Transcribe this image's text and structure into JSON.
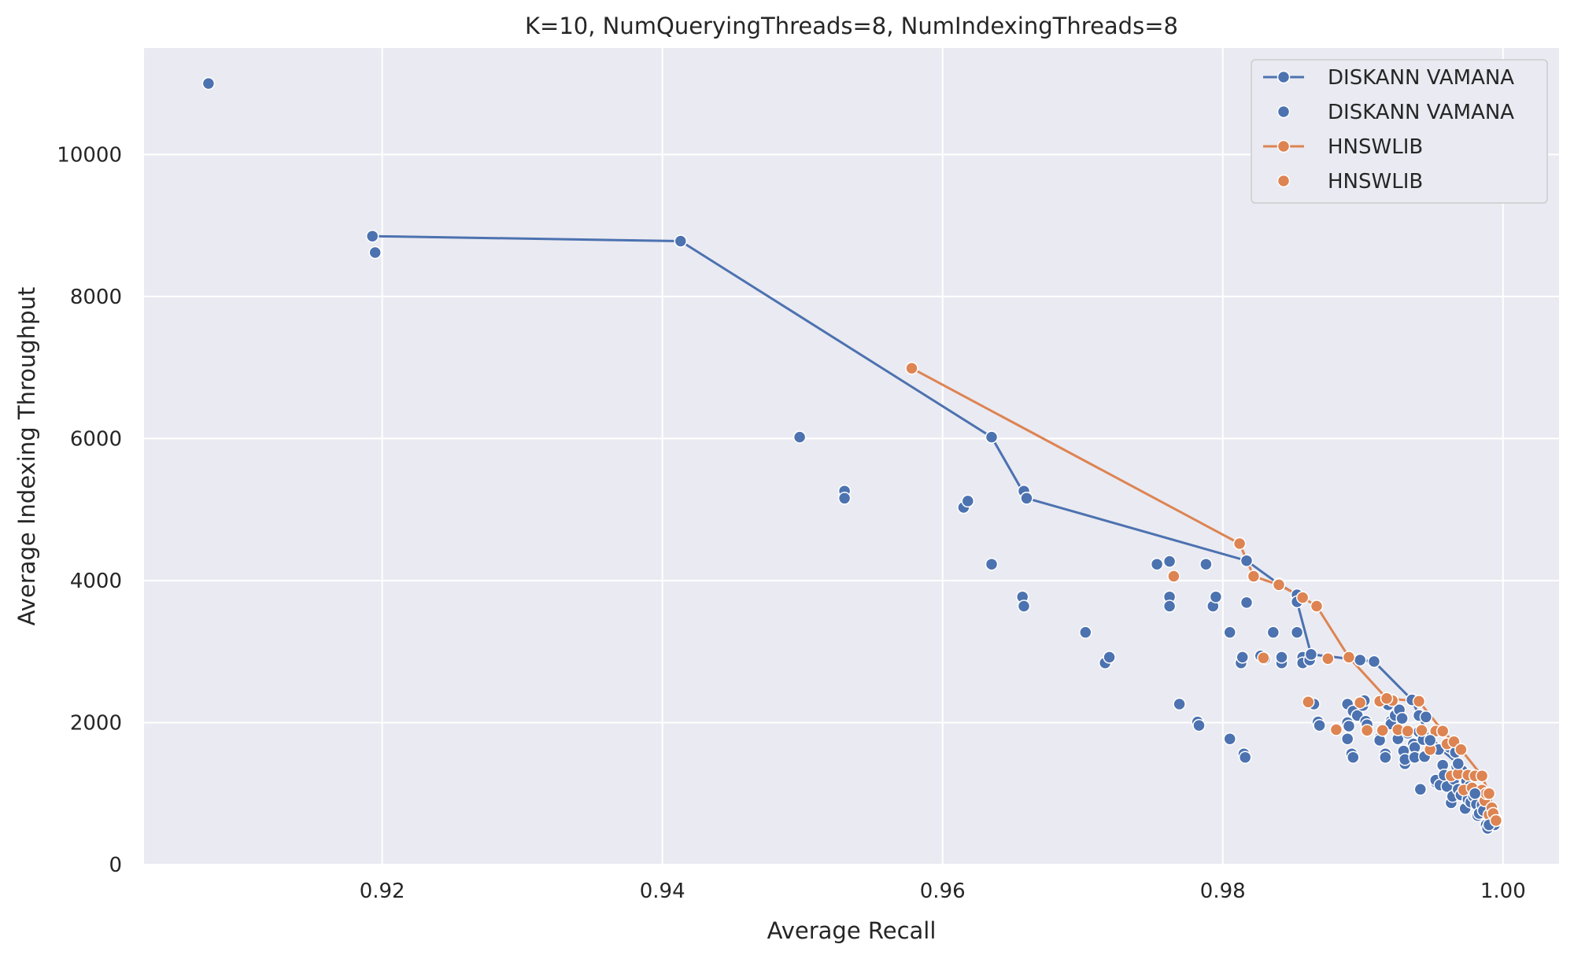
{
  "chart_data": {
    "type": "scatter",
    "title": "K=10, NumQueryingThreads=8, NumIndexingThreads=8",
    "xlabel": "Average Recall",
    "ylabel": "Average Indexing Throughput",
    "xlim": [
      0.903,
      1.004
    ],
    "ylim": [
      0,
      11500
    ],
    "xticks": [
      0.92,
      0.94,
      0.96,
      0.98,
      1.0
    ],
    "xtick_labels": [
      "0.92",
      "0.94",
      "0.96",
      "0.98",
      "1.00"
    ],
    "yticks": [
      0,
      2000,
      4000,
      6000,
      8000,
      10000
    ],
    "ytick_labels": [
      "0",
      "2000",
      "4000",
      "6000",
      "8000",
      "10000"
    ],
    "grid": true,
    "legend_position": "top-right",
    "background": "#eaeaf2",
    "legend": [
      {
        "label": "DISKANN VAMANA",
        "kind": "line-marker",
        "color": "#4c72b0"
      },
      {
        "label": "DISKANN VAMANA",
        "kind": "marker",
        "color": "#4c72b0"
      },
      {
        "label": "HNSWLIB",
        "kind": "line-marker",
        "color": "#dd8452"
      },
      {
        "label": "HNSWLIB",
        "kind": "marker",
        "color": "#dd8452"
      }
    ],
    "lines": [
      {
        "name": "DISKANN VAMANA",
        "color": "#4c72b0",
        "x": [
          0.9193,
          0.9413,
          0.9635,
          0.966,
          0.9817,
          0.984,
          0.9853,
          0.9853,
          0.9863,
          0.9898,
          0.9908,
          0.9935,
          0.9948,
          0.9968,
          0.998,
          0.999
        ],
        "y": [
          8850,
          8780,
          6020,
          5160,
          4280,
          3950,
          3800,
          3700,
          2960,
          2880,
          2860,
          2320,
          1750,
          1420,
          1000,
          560
        ]
      },
      {
        "name": "HNSWLIB",
        "color": "#dd8452",
        "x": [
          0.9578,
          0.9812,
          0.9822,
          0.984,
          0.9857,
          0.9867,
          0.989,
          0.9917,
          0.994,
          0.9957,
          0.997,
          0.9985,
          0.999,
          0.9995
        ],
        "y": [
          6990,
          4520,
          4060,
          3940,
          3760,
          3640,
          2920,
          2340,
          2300,
          1880,
          1620,
          1250,
          1000,
          620
        ]
      }
    ],
    "series": [
      {
        "name": "DISKANN VAMANA",
        "color": "#4c72b0",
        "points": [
          [
            0.9076,
            11000
          ],
          [
            0.9193,
            8850
          ],
          [
            0.9195,
            8620
          ],
          [
            0.9413,
            8780
          ],
          [
            0.9498,
            6020
          ],
          [
            0.953,
            5260
          ],
          [
            0.953,
            5160
          ],
          [
            0.9615,
            5030
          ],
          [
            0.9618,
            5120
          ],
          [
            0.9635,
            6020
          ],
          [
            0.9635,
            4230
          ],
          [
            0.9657,
            3770
          ],
          [
            0.9658,
            3640
          ],
          [
            0.9658,
            5260
          ],
          [
            0.966,
            5160
          ],
          [
            0.9702,
            3270
          ],
          [
            0.9716,
            2840
          ],
          [
            0.9719,
            2920
          ],
          [
            0.9753,
            4230
          ],
          [
            0.9762,
            4270
          ],
          [
            0.9762,
            3770
          ],
          [
            0.9762,
            3640
          ],
          [
            0.9769,
            2260
          ],
          [
            0.9782,
            2010
          ],
          [
            0.9783,
            1960
          ],
          [
            0.9788,
            4230
          ],
          [
            0.9793,
            3640
          ],
          [
            0.9795,
            3770
          ],
          [
            0.9805,
            3270
          ],
          [
            0.9805,
            1770
          ],
          [
            0.9813,
            2840
          ],
          [
            0.9814,
            2920
          ],
          [
            0.9815,
            1560
          ],
          [
            0.9816,
            1510
          ],
          [
            0.9817,
            3690
          ],
          [
            0.9817,
            4280
          ],
          [
            0.9827,
            2940
          ],
          [
            0.983,
            2900
          ],
          [
            0.9836,
            3270
          ],
          [
            0.9842,
            2840
          ],
          [
            0.9842,
            2920
          ],
          [
            0.984,
            3950
          ],
          [
            0.9853,
            3700
          ],
          [
            0.9853,
            3270
          ],
          [
            0.9857,
            2920
          ],
          [
            0.9857,
            2840
          ],
          [
            0.9862,
            2880
          ],
          [
            0.9863,
            2960
          ],
          [
            0.9865,
            2260
          ],
          [
            0.9868,
            2010
          ],
          [
            0.9869,
            1960
          ],
          [
            0.9889,
            2260
          ],
          [
            0.9889,
            2000
          ],
          [
            0.989,
            1950
          ],
          [
            0.9889,
            1770
          ],
          [
            0.9892,
            1560
          ],
          [
            0.9893,
            1510
          ],
          [
            0.9893,
            2160
          ],
          [
            0.9896,
            2100
          ],
          [
            0.9898,
            2880
          ],
          [
            0.99,
            2240
          ],
          [
            0.9901,
            2310
          ],
          [
            0.9902,
            2020
          ],
          [
            0.9903,
            1970
          ],
          [
            0.9908,
            2860
          ],
          [
            0.9912,
            1780
          ],
          [
            0.9912,
            1750
          ],
          [
            0.9916,
            1560
          ],
          [
            0.9916,
            1510
          ],
          [
            0.9918,
            2250
          ],
          [
            0.992,
            2020
          ],
          [
            0.992,
            1980
          ],
          [
            0.9923,
            2100
          ],
          [
            0.9925,
            1770
          ],
          [
            0.9926,
            2180
          ],
          [
            0.9928,
            2060
          ],
          [
            0.9929,
            1600
          ],
          [
            0.993,
            1420
          ],
          [
            0.993,
            1480
          ],
          [
            0.9932,
            1850
          ],
          [
            0.9935,
            2320
          ],
          [
            0.9936,
            1700
          ],
          [
            0.9937,
            1650
          ],
          [
            0.9937,
            1510
          ],
          [
            0.994,
            2100
          ],
          [
            0.994,
            1870
          ],
          [
            0.9941,
            1060
          ],
          [
            0.9943,
            1760
          ],
          [
            0.9944,
            1520
          ],
          [
            0.9945,
            2080
          ],
          [
            0.9948,
            1750
          ],
          [
            0.995,
            1680
          ],
          [
            0.9952,
            1160
          ],
          [
            0.9952,
            1190
          ],
          [
            0.9954,
            1620
          ],
          [
            0.9955,
            1120
          ],
          [
            0.9957,
            1400
          ],
          [
            0.9958,
            1260
          ],
          [
            0.996,
            1100
          ],
          [
            0.9962,
            1650
          ],
          [
            0.9963,
            870
          ],
          [
            0.9964,
            960
          ],
          [
            0.9965,
            1200
          ],
          [
            0.9966,
            1580
          ],
          [
            0.9967,
            1380
          ],
          [
            0.9968,
            1420
          ],
          [
            0.9968,
            1060
          ],
          [
            0.997,
            980
          ],
          [
            0.9971,
            1320
          ],
          [
            0.9972,
            1240
          ],
          [
            0.9973,
            790
          ],
          [
            0.9974,
            1180
          ],
          [
            0.9975,
            920
          ],
          [
            0.9976,
            1100
          ],
          [
            0.9977,
            880
          ],
          [
            0.9979,
            960
          ],
          [
            0.998,
            1000
          ],
          [
            0.9981,
            850
          ],
          [
            0.9982,
            690
          ],
          [
            0.9983,
            720
          ],
          [
            0.9985,
            840
          ],
          [
            0.9986,
            760
          ],
          [
            0.9988,
            560
          ],
          [
            0.9989,
            510
          ],
          [
            0.999,
            560
          ],
          [
            0.9992,
            600
          ],
          [
            0.9994,
            560
          ],
          [
            0.9995,
            640
          ]
        ]
      },
      {
        "name": "HNSWLIB",
        "color": "#dd8452",
        "points": [
          [
            0.9578,
            6990
          ],
          [
            0.9765,
            4060
          ],
          [
            0.9812,
            4520
          ],
          [
            0.9822,
            4060
          ],
          [
            0.9829,
            2910
          ],
          [
            0.984,
            3940
          ],
          [
            0.9857,
            3760
          ],
          [
            0.9861,
            2290
          ],
          [
            0.9867,
            3640
          ],
          [
            0.9875,
            2900
          ],
          [
            0.9881,
            1900
          ],
          [
            0.989,
            2920
          ],
          [
            0.9898,
            2280
          ],
          [
            0.9903,
            1890
          ],
          [
            0.9912,
            2300
          ],
          [
            0.9914,
            1890
          ],
          [
            0.9917,
            2340
          ],
          [
            0.9921,
            2310
          ],
          [
            0.9925,
            1900
          ],
          [
            0.9932,
            1880
          ],
          [
            0.994,
            2300
          ],
          [
            0.9942,
            1890
          ],
          [
            0.9948,
            1620
          ],
          [
            0.9952,
            1880
          ],
          [
            0.9957,
            1880
          ],
          [
            0.996,
            1700
          ],
          [
            0.9963,
            1250
          ],
          [
            0.9965,
            1730
          ],
          [
            0.9968,
            1280
          ],
          [
            0.997,
            1620
          ],
          [
            0.9972,
            1050
          ],
          [
            0.9975,
            1260
          ],
          [
            0.9978,
            1080
          ],
          [
            0.998,
            1250
          ],
          [
            0.9983,
            1000
          ],
          [
            0.9985,
            1050
          ],
          [
            0.9987,
            900
          ],
          [
            0.9988,
            1000
          ],
          [
            0.999,
            700
          ],
          [
            0.9992,
            800
          ],
          [
            0.9993,
            720
          ],
          [
            0.9995,
            620
          ]
        ]
      }
    ]
  }
}
